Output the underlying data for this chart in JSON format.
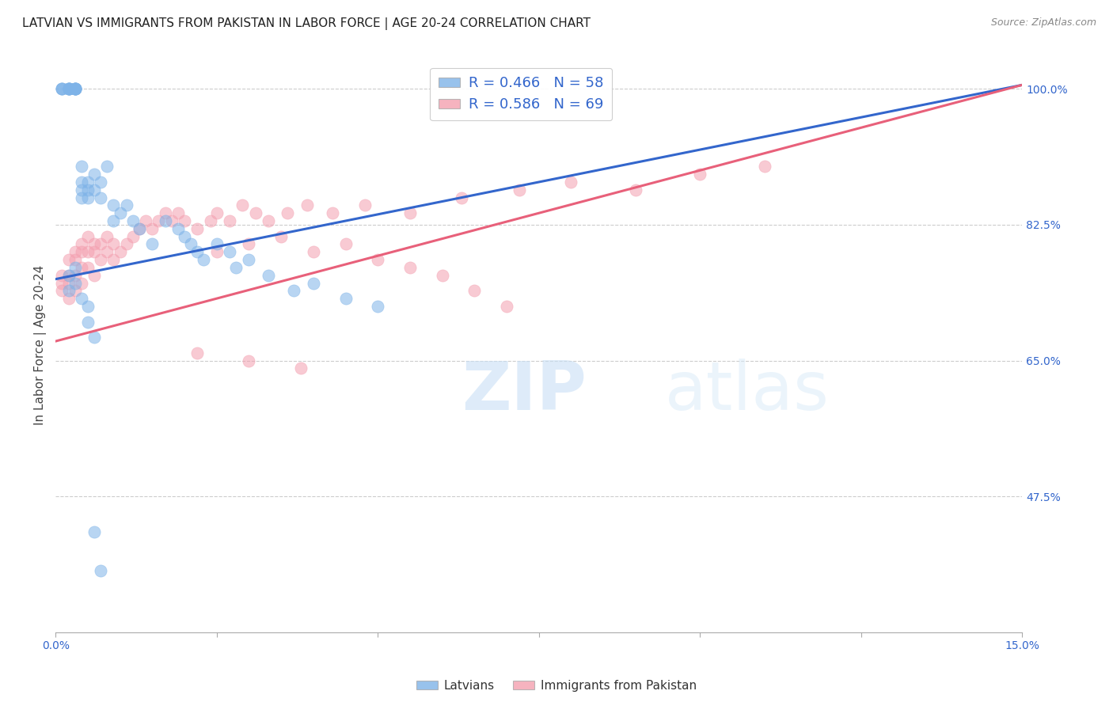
{
  "title": "LATVIAN VS IMMIGRANTS FROM PAKISTAN IN LABOR FORCE | AGE 20-24 CORRELATION CHART",
  "source": "Source: ZipAtlas.com",
  "ylabel": "In Labor Force | Age 20-24",
  "xlim": [
    0.0,
    0.15
  ],
  "ylim": [
    0.3,
    1.04
  ],
  "yticks_right": [
    1.0,
    0.825,
    0.65,
    0.475
  ],
  "ytick_labels_right": [
    "100.0%",
    "82.5%",
    "65.0%",
    "47.5%"
  ],
  "blue_color": "#7EB3E8",
  "pink_color": "#F4A0B0",
  "blue_line_color": "#3366CC",
  "pink_line_color": "#E8607A",
  "blue_R": 0.466,
  "blue_N": 58,
  "pink_R": 0.586,
  "pink_N": 69,
  "legend_label_blue": "Latvians",
  "legend_label_pink": "Immigrants from Pakistan",
  "title_color": "#222222",
  "axis_color": "#3366CC",
  "background_color": "#ffffff",
  "grid_color": "#cccccc",
  "title_fontsize": 11,
  "axis_label_fontsize": 11,
  "tick_fontsize": 10,
  "blue_line_x0": 0.0,
  "blue_line_y0": 0.755,
  "blue_line_x1": 0.15,
  "blue_line_y1": 1.005,
  "pink_line_x0": 0.0,
  "pink_line_y0": 0.675,
  "pink_line_x1": 0.15,
  "pink_line_y1": 1.005,
  "blue_scatter_x": [
    0.001,
    0.001,
    0.001,
    0.002,
    0.002,
    0.002,
    0.002,
    0.002,
    0.003,
    0.003,
    0.003,
    0.003,
    0.003,
    0.003,
    0.004,
    0.004,
    0.004,
    0.004,
    0.005,
    0.005,
    0.005,
    0.006,
    0.006,
    0.007,
    0.007,
    0.008,
    0.009,
    0.009,
    0.01,
    0.011,
    0.012,
    0.013,
    0.015,
    0.017,
    0.019,
    0.02,
    0.021,
    0.022,
    0.023,
    0.025,
    0.027,
    0.028,
    0.03,
    0.033,
    0.037,
    0.04,
    0.045,
    0.05,
    0.002,
    0.002,
    0.003,
    0.003,
    0.004,
    0.005,
    0.005,
    0.006,
    0.006,
    0.007
  ],
  "blue_scatter_y": [
    1.0,
    1.0,
    1.0,
    1.0,
    1.0,
    1.0,
    1.0,
    1.0,
    1.0,
    1.0,
    1.0,
    1.0,
    1.0,
    1.0,
    0.9,
    0.88,
    0.87,
    0.86,
    0.88,
    0.87,
    0.86,
    0.89,
    0.87,
    0.88,
    0.86,
    0.9,
    0.85,
    0.83,
    0.84,
    0.85,
    0.83,
    0.82,
    0.8,
    0.83,
    0.82,
    0.81,
    0.8,
    0.79,
    0.78,
    0.8,
    0.79,
    0.77,
    0.78,
    0.76,
    0.74,
    0.75,
    0.73,
    0.72,
    0.76,
    0.74,
    0.77,
    0.75,
    0.73,
    0.72,
    0.7,
    0.68,
    0.43,
    0.38
  ],
  "pink_scatter_x": [
    0.001,
    0.001,
    0.001,
    0.002,
    0.002,
    0.002,
    0.002,
    0.003,
    0.003,
    0.003,
    0.003,
    0.004,
    0.004,
    0.004,
    0.004,
    0.005,
    0.005,
    0.005,
    0.006,
    0.006,
    0.006,
    0.007,
    0.007,
    0.008,
    0.008,
    0.009,
    0.009,
    0.01,
    0.011,
    0.012,
    0.013,
    0.014,
    0.015,
    0.016,
    0.017,
    0.018,
    0.019,
    0.02,
    0.022,
    0.024,
    0.025,
    0.027,
    0.029,
    0.031,
    0.033,
    0.036,
    0.039,
    0.043,
    0.048,
    0.055,
    0.063,
    0.072,
    0.08,
    0.09,
    0.1,
    0.11,
    0.025,
    0.03,
    0.035,
    0.04,
    0.045,
    0.05,
    0.055,
    0.06,
    0.065,
    0.07,
    0.022,
    0.03,
    0.038
  ],
  "pink_scatter_y": [
    0.76,
    0.75,
    0.74,
    0.78,
    0.76,
    0.75,
    0.73,
    0.79,
    0.78,
    0.76,
    0.74,
    0.8,
    0.79,
    0.77,
    0.75,
    0.81,
    0.79,
    0.77,
    0.8,
    0.79,
    0.76,
    0.8,
    0.78,
    0.81,
    0.79,
    0.8,
    0.78,
    0.79,
    0.8,
    0.81,
    0.82,
    0.83,
    0.82,
    0.83,
    0.84,
    0.83,
    0.84,
    0.83,
    0.82,
    0.83,
    0.84,
    0.83,
    0.85,
    0.84,
    0.83,
    0.84,
    0.85,
    0.84,
    0.85,
    0.84,
    0.86,
    0.87,
    0.88,
    0.87,
    0.89,
    0.9,
    0.79,
    0.8,
    0.81,
    0.79,
    0.8,
    0.78,
    0.77,
    0.76,
    0.74,
    0.72,
    0.66,
    0.65,
    0.64
  ]
}
